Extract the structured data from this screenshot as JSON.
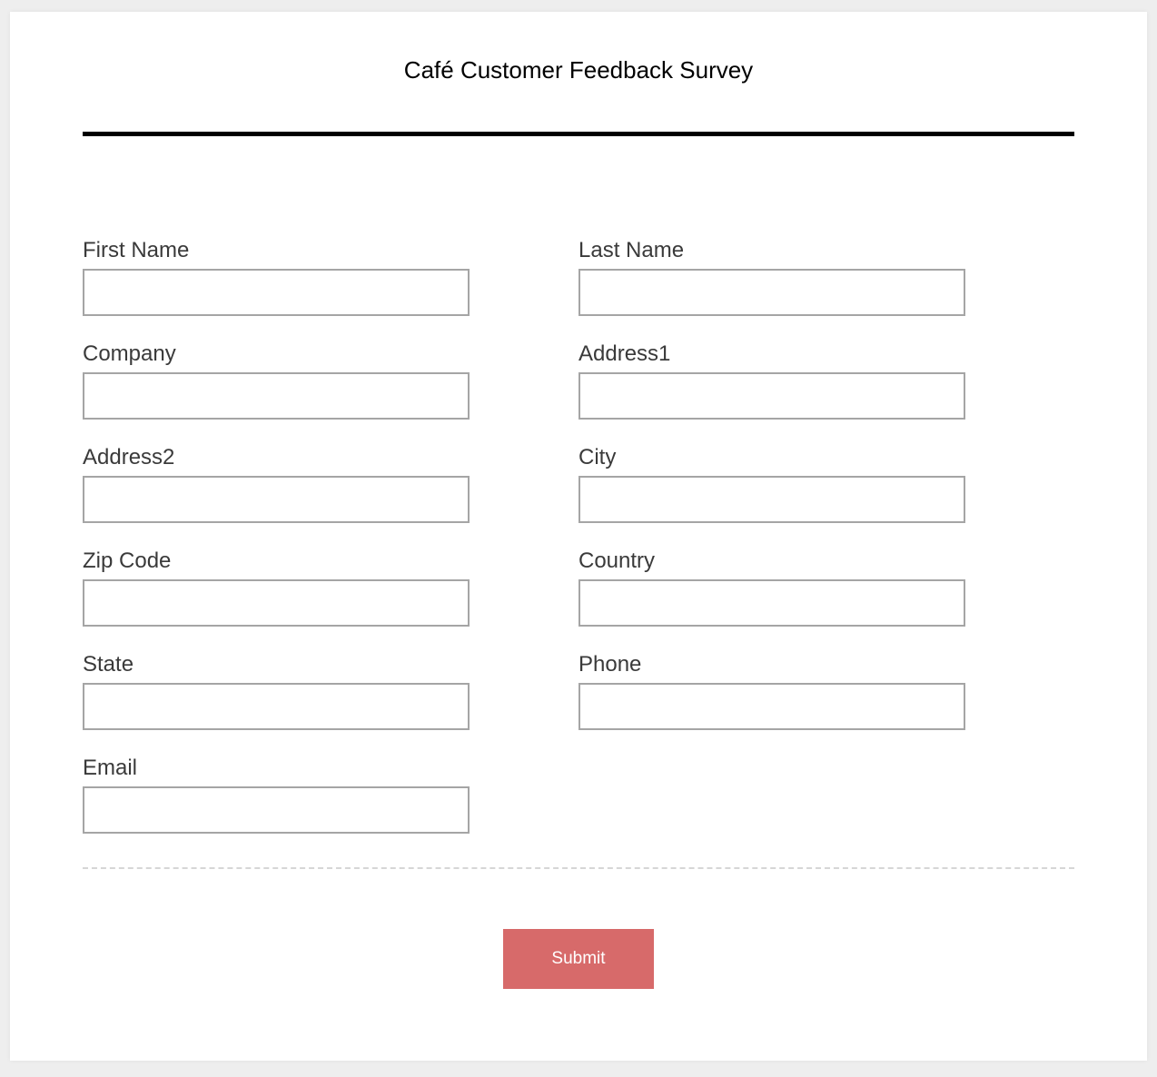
{
  "page": {
    "background_color": "#eeeeee",
    "card_background": "#ffffff",
    "rule_color": "#000000",
    "dashed_rule_color": "#d6d6d6",
    "label_color": "#3a3a3a",
    "input_border_color": "#a5a5a5"
  },
  "form": {
    "title": "Café Customer Feedback Survey",
    "fields": [
      {
        "label": "First Name",
        "value": "",
        "placeholder": ""
      },
      {
        "label": "Last Name",
        "value": "",
        "placeholder": ""
      },
      {
        "label": "Company",
        "value": "",
        "placeholder": ""
      },
      {
        "label": "Address1",
        "value": "",
        "placeholder": ""
      },
      {
        "label": "Address2",
        "value": "",
        "placeholder": ""
      },
      {
        "label": "City",
        "value": "",
        "placeholder": ""
      },
      {
        "label": "Zip Code",
        "value": "",
        "placeholder": ""
      },
      {
        "label": "Country",
        "value": "",
        "placeholder": ""
      },
      {
        "label": "State",
        "value": "",
        "placeholder": ""
      },
      {
        "label": "Phone",
        "value": "",
        "placeholder": ""
      },
      {
        "label": "Email",
        "value": "",
        "placeholder": ""
      }
    ],
    "submit": {
      "label": "Submit",
      "background_color": "#d76a6a",
      "text_color": "#ffffff"
    }
  }
}
